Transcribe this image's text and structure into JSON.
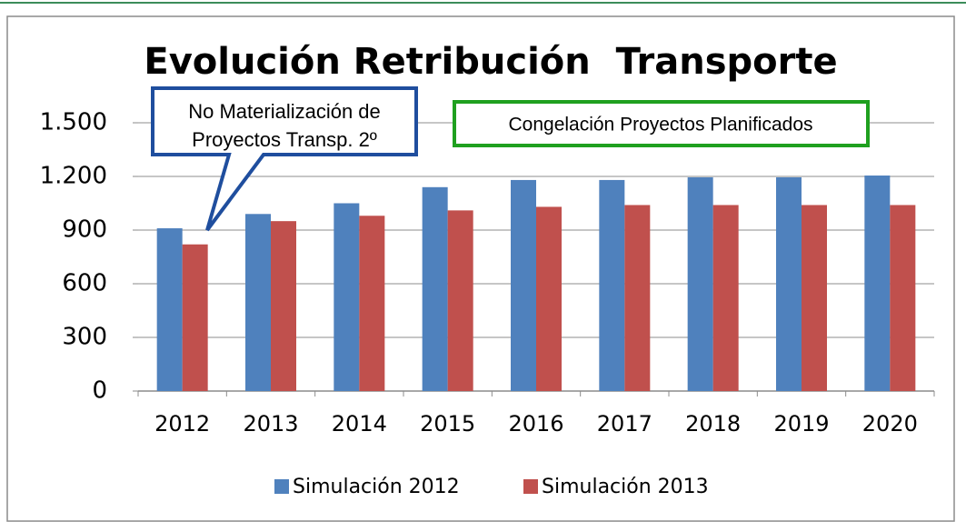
{
  "chart_data": {
    "type": "bar",
    "title": "Evolución Retribución  Transporte",
    "annotations": [
      "No Materialización de",
      "Proyectos Transp. 2º",
      "Congelación Proyectos Planificados"
    ],
    "categories": [
      "2012",
      "2013",
      "2014",
      "2015",
      "2016",
      "2017",
      "2018",
      "2019",
      "2020"
    ],
    "series": [
      {
        "name": "Simulación 2012",
        "color": "#4f81bd",
        "values": [
          910,
          990,
          1050,
          1140,
          1180,
          1180,
          1195,
          1195,
          1205
        ]
      },
      {
        "name": "Simulación 2013",
        "color": "#c0504d",
        "values": [
          820,
          950,
          980,
          1010,
          1030,
          1040,
          1040,
          1040,
          1040
        ]
      }
    ],
    "ylim": [
      0,
      1500
    ],
    "yticks": [
      0,
      300,
      600,
      900,
      {
        "value": 1200,
        "label": "1.200"
      },
      {
        "value": 1500,
        "label": "1.500"
      }
    ],
    "grid": true,
    "legend": "bottom"
  }
}
